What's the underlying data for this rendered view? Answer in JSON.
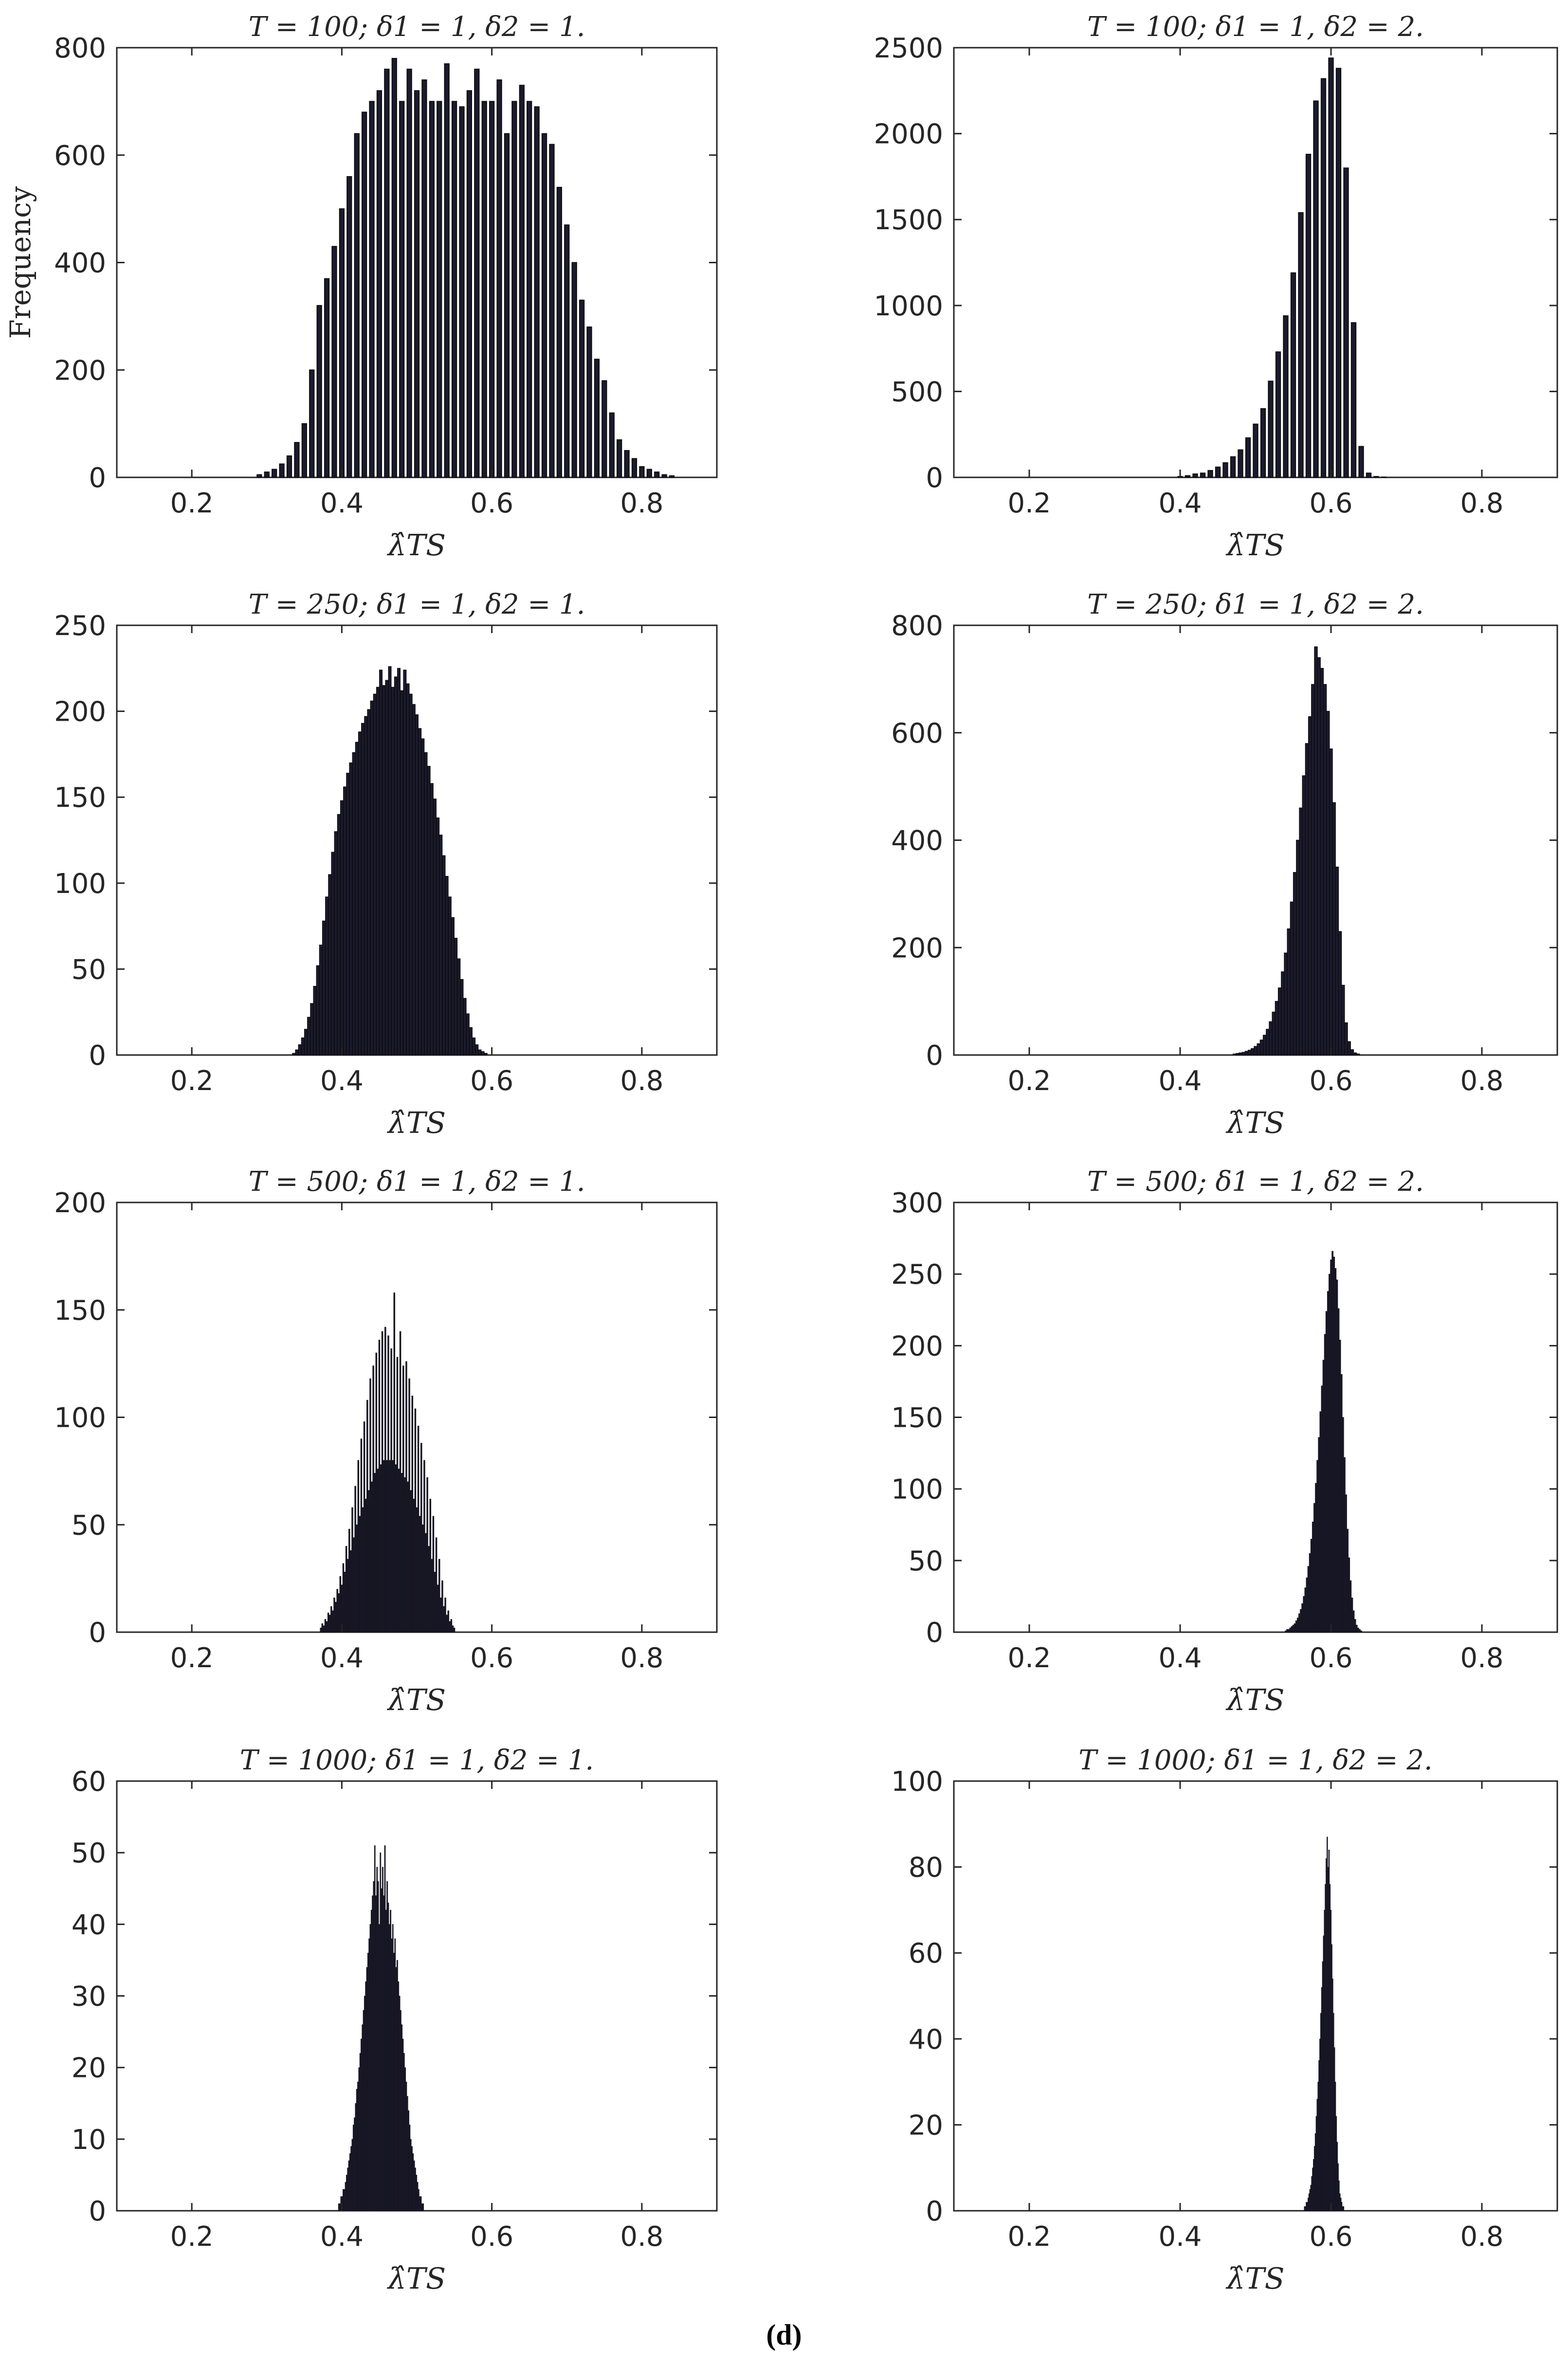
{
  "figure": {
    "caption": "(d)",
    "bar_color": "#1c1a2e",
    "edge_color": "#0d0d0d",
    "axis_color": "#262626"
  },
  "chart_data": [
    {
      "type": "bar",
      "subtype": "histogram",
      "title": "T = 100; δ1 = 1, δ2 = 1.",
      "xlabel": "λ̂TS",
      "ylabel": "Frequency",
      "xlim": [
        0.1,
        0.9
      ],
      "ylim": [
        0,
        800
      ],
      "xticks": [
        "0.2",
        "0.4",
        "0.6",
        "0.8"
      ],
      "xtick_values": [
        0.2,
        0.4,
        0.6,
        0.8
      ],
      "yticks": [
        "0",
        "200",
        "400",
        "600",
        "800"
      ],
      "ytick_values": [
        0,
        200,
        400,
        600,
        800
      ],
      "bin_width": 0.01,
      "bar_width_fraction": 0.6,
      "x_start": 0.29,
      "values": [
        5,
        10,
        15,
        25,
        40,
        65,
        100,
        200,
        320,
        370,
        430,
        500,
        560,
        640,
        680,
        700,
        720,
        760,
        780,
        700,
        760,
        720,
        740,
        700,
        700,
        770,
        700,
        690,
        720,
        760,
        700,
        700,
        740,
        640,
        700,
        730,
        700,
        690,
        640,
        620,
        540,
        470,
        400,
        330,
        280,
        220,
        180,
        120,
        70,
        50,
        35,
        20,
        15,
        10,
        5,
        3
      ]
    },
    {
      "type": "bar",
      "subtype": "histogram",
      "title": "T = 100; δ1 = 1, δ2 = 2.",
      "xlabel": "λ̂TS",
      "ylabel": "",
      "xlim": [
        0.1,
        0.9
      ],
      "ylim": [
        0,
        2500
      ],
      "xticks": [
        "0.2",
        "0.4",
        "0.6",
        "0.8"
      ],
      "xtick_values": [
        0.2,
        0.4,
        0.6,
        0.8
      ],
      "yticks": [
        "0",
        "500",
        "1000",
        "1500",
        "2000",
        "2500"
      ],
      "ytick_values": [
        0,
        500,
        1000,
        1500,
        2000,
        2500
      ],
      "bin_width": 0.01,
      "bar_width_fraction": 0.6,
      "x_start": 0.4,
      "values": [
        5,
        10,
        20,
        25,
        40,
        60,
        85,
        120,
        160,
        230,
        310,
        400,
        560,
        730,
        940,
        1190,
        1540,
        1880,
        2190,
        2320,
        2440,
        2380,
        1800,
        900,
        180,
        25,
        5,
        2
      ]
    },
    {
      "type": "bar",
      "subtype": "histogram",
      "title": "T = 250; δ1 = 1, δ2 = 1.",
      "xlabel": "λ̂TS",
      "ylabel": "",
      "xlim": [
        0.1,
        0.9
      ],
      "ylim": [
        0,
        250
      ],
      "xticks": [
        "0.2",
        "0.4",
        "0.6",
        "0.8"
      ],
      "xtick_values": [
        0.2,
        0.4,
        0.6,
        0.8
      ],
      "yticks": [
        "0",
        "50",
        "100",
        "150",
        "200",
        "250"
      ],
      "ytick_values": [
        0,
        50,
        100,
        150,
        200,
        250
      ],
      "bin_width": 0.004,
      "bar_width_fraction": 0.9,
      "x_start": 0.336,
      "values": [
        1,
        3,
        6,
        10,
        15,
        22,
        30,
        40,
        52,
        64,
        78,
        92,
        105,
        118,
        130,
        140,
        148,
        156,
        164,
        170,
        176,
        182,
        188,
        193,
        197,
        201,
        206,
        210,
        214,
        224,
        215,
        218,
        226,
        214,
        220,
        225,
        212,
        224,
        216,
        210,
        204,
        198,
        190,
        184,
        176,
        168,
        158,
        149,
        138,
        128,
        116,
        104,
        92,
        80,
        68,
        56,
        44,
        33,
        24,
        16,
        10,
        6,
        3,
        2,
        1
      ]
    },
    {
      "type": "bar",
      "subtype": "histogram",
      "title": "T = 250; δ1 = 1, δ2 = 2.",
      "xlabel": "λ̂TS",
      "ylabel": "",
      "xlim": [
        0.1,
        0.9
      ],
      "ylim": [
        0,
        800
      ],
      "xticks": [
        "0.2",
        "0.4",
        "0.6",
        "0.8"
      ],
      "xtick_values": [
        0.2,
        0.4,
        0.6,
        0.8
      ],
      "yticks": [
        "0",
        "200",
        "400",
        "600",
        "800"
      ],
      "ytick_values": [
        0,
        200,
        400,
        600,
        800
      ],
      "bin_width": 0.004,
      "bar_width_fraction": 0.95,
      "x_start": 0.472,
      "values": [
        2,
        3,
        4,
        5,
        7,
        9,
        12,
        16,
        21,
        28,
        37,
        48,
        62,
        80,
        100,
        125,
        155,
        190,
        235,
        285,
        340,
        400,
        460,
        520,
        580,
        630,
        690,
        760,
        740,
        720,
        690,
        640,
        570,
        470,
        350,
        230,
        130,
        60,
        25,
        10,
        4,
        2
      ]
    },
    {
      "type": "bar",
      "subtype": "histogram",
      "title": "T = 500; δ1 = 1, δ2 = 1.",
      "xlabel": "λ̂TS",
      "ylabel": "",
      "xlim": [
        0.1,
        0.9
      ],
      "ylim": [
        0,
        200
      ],
      "xticks": [
        "0.2",
        "0.4",
        "0.6",
        "0.8"
      ],
      "xtick_values": [
        0.2,
        0.4,
        0.6,
        0.8
      ],
      "yticks": [
        "0",
        "50",
        "100",
        "150",
        "200"
      ],
      "ytick_values": [
        0,
        50,
        100,
        150,
        200
      ],
      "bin_width": 0.002,
      "bar_width_fraction": 0.9,
      "x_start": 0.372,
      "values": [
        2,
        4,
        3,
        6,
        5,
        9,
        8,
        12,
        10,
        16,
        14,
        20,
        18,
        26,
        22,
        32,
        28,
        40,
        34,
        48,
        38,
        58,
        44,
        68,
        50,
        80,
        54,
        90,
        58,
        98,
        62,
        108,
        66,
        118,
        70,
        124,
        74,
        130,
        76,
        136,
        78,
        140,
        80,
        142,
        80,
        138,
        80,
        132,
        80,
        158,
        78,
        128,
        76,
        140,
        74,
        124,
        72,
        126,
        70,
        118,
        66,
        110,
        62,
        104,
        58,
        96,
        54,
        88,
        50,
        80,
        46,
        72,
        40,
        62,
        34,
        54,
        28,
        44,
        22,
        34,
        16,
        24,
        12,
        16,
        8,
        10,
        5,
        6,
        3,
        2
      ]
    },
    {
      "type": "bar",
      "subtype": "histogram",
      "title": "T = 500; δ1 = 1, δ2 = 2.",
      "xlabel": "λ̂TS",
      "ylabel": "",
      "xlim": [
        0.1,
        0.9
      ],
      "ylim": [
        0,
        300
      ],
      "xticks": [
        "0.2",
        "0.4",
        "0.6",
        "0.8"
      ],
      "xtick_values": [
        0.2,
        0.4,
        0.6,
        0.8
      ],
      "yticks": [
        "0",
        "50",
        "100",
        "150",
        "200",
        "250",
        "300"
      ],
      "ytick_values": [
        0,
        50,
        100,
        150,
        200,
        250,
        300
      ],
      "bin_width": 0.002,
      "bar_width_fraction": 0.95,
      "x_start": 0.54,
      "values": [
        1,
        2,
        2,
        3,
        4,
        5,
        6,
        8,
        10,
        13,
        16,
        20,
        25,
        31,
        38,
        46,
        55,
        65,
        77,
        90,
        104,
        120,
        136,
        154,
        172,
        190,
        208,
        224,
        238,
        250,
        260,
        266,
        262,
        254,
        246,
        226,
        204,
        180,
        150,
        122,
        96,
        72,
        52,
        36,
        24,
        15,
        9,
        5,
        3,
        2,
        1
      ]
    },
    {
      "type": "bar",
      "subtype": "histogram",
      "title": "T = 1000; δ1 = 1, δ2 = 1.",
      "xlabel": "λ̂TS",
      "ylabel": "",
      "xlim": [
        0.1,
        0.9
      ],
      "ylim": [
        0,
        60
      ],
      "xticks": [
        "0.2",
        "0.4",
        "0.6",
        "0.8"
      ],
      "xtick_values": [
        0.2,
        0.4,
        0.6,
        0.8
      ],
      "yticks": [
        "0",
        "10",
        "20",
        "30",
        "40",
        "50",
        "60"
      ],
      "ytick_values": [
        0,
        10,
        20,
        30,
        40,
        50,
        60
      ],
      "bin_width": 0.0015,
      "bar_width_fraction": 0.95,
      "x_start": 0.396,
      "values": [
        1,
        1,
        2,
        2,
        3,
        3,
        4,
        5,
        6,
        7,
        8,
        9,
        10,
        12,
        13,
        15,
        17,
        18,
        20,
        22,
        24,
        26,
        28,
        30,
        32,
        34,
        36,
        38,
        40,
        42,
        44,
        46,
        51,
        44,
        48,
        46,
        40,
        50,
        45,
        48,
        44,
        51,
        42,
        46,
        43,
        40,
        42,
        38,
        40,
        36,
        38,
        34,
        35,
        32,
        30,
        28,
        26,
        24,
        22,
        20,
        18,
        16,
        14,
        12,
        10,
        9,
        8,
        7,
        6,
        5,
        4,
        3,
        2,
        2,
        1,
        1
      ]
    },
    {
      "type": "bar",
      "subtype": "histogram",
      "title": "T = 1000; δ1 = 1, δ2 = 2.",
      "xlabel": "λ̂TS",
      "ylabel": "",
      "xlim": [
        0.1,
        0.9
      ],
      "ylim": [
        0,
        100
      ],
      "xticks": [
        "0.2",
        "0.4",
        "0.6",
        "0.8"
      ],
      "xtick_values": [
        0.2,
        0.4,
        0.6,
        0.8
      ],
      "yticks": [
        "0",
        "20",
        "40",
        "60",
        "80",
        "100"
      ],
      "ytick_values": [
        0,
        20,
        40,
        60,
        80,
        100
      ],
      "bin_width": 0.0012,
      "bar_width_fraction": 0.95,
      "x_start": 0.565,
      "values": [
        1,
        1,
        2,
        2,
        3,
        4,
        5,
        6,
        8,
        10,
        12,
        15,
        18,
        22,
        26,
        30,
        35,
        40,
        46,
        52,
        58,
        64,
        70,
        76,
        82,
        87,
        80,
        84,
        76,
        70,
        62,
        54,
        46,
        38,
        30,
        22,
        16,
        11,
        7,
        4,
        3,
        2,
        1,
        1
      ]
    }
  ]
}
